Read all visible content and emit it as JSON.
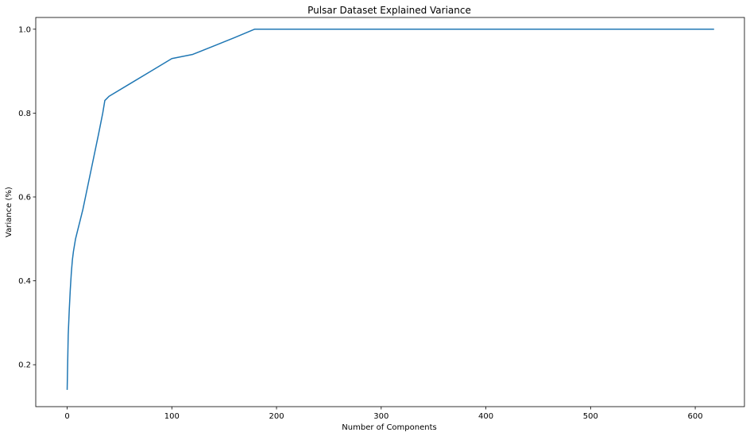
{
  "chart_data": {
    "type": "line",
    "title": "Pulsar Dataset Explained Variance",
    "xlabel": "Number of Components",
    "ylabel": "Variance (%)",
    "xlim": [
      -30,
      647
    ],
    "ylim": [
      0.1,
      1.028
    ],
    "xticks": [
      0,
      100,
      200,
      300,
      400,
      500,
      600
    ],
    "xtick_labels": [
      "0",
      "100",
      "200",
      "300",
      "400",
      "500",
      "600"
    ],
    "yticks": [
      0.2,
      0.4,
      0.6,
      0.8,
      1.0
    ],
    "ytick_labels": [
      "0.2",
      "0.4",
      "0.6",
      "0.8",
      "1.0"
    ],
    "grid": false,
    "legend": "none",
    "line_color": "#1f77b4",
    "series": [
      {
        "x": [
          0,
          1,
          2,
          3,
          4,
          5,
          6,
          8,
          10,
          12,
          15,
          20,
          25,
          30,
          34,
          36,
          38,
          40,
          60,
          80,
          100,
          120,
          140,
          160,
          179,
          200,
          300,
          400,
          500,
          618
        ],
        "values": [
          0.14,
          0.27,
          0.33,
          0.38,
          0.42,
          0.45,
          0.47,
          0.5,
          0.52,
          0.54,
          0.57,
          0.63,
          0.69,
          0.75,
          0.8,
          0.83,
          0.835,
          0.84,
          0.87,
          0.9,
          0.93,
          0.94,
          0.96,
          0.98,
          1.0,
          1.0,
          1.0,
          1.0,
          1.0,
          1.0
        ]
      }
    ]
  }
}
